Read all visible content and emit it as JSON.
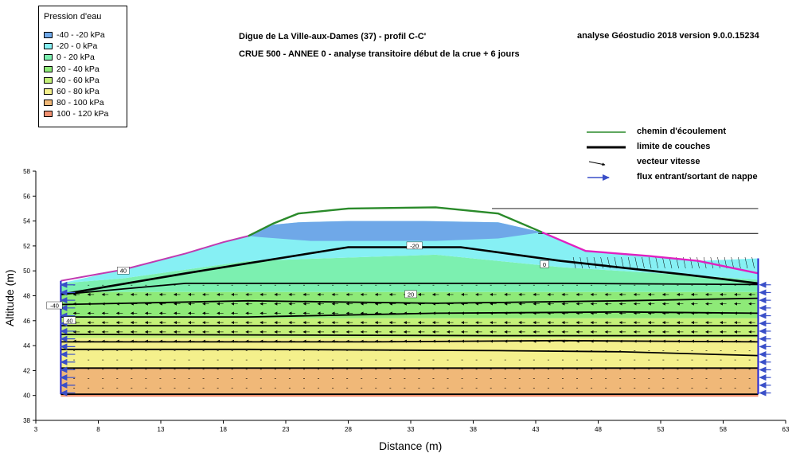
{
  "legend": {
    "title": "Pression d'eau",
    "items": [
      {
        "label": "-40 - -20 kPa",
        "color": "#6fa8e8"
      },
      {
        "label": "-20 - 0 kPa",
        "color": "#86f0f4"
      },
      {
        "label": "0 - 20 kPa",
        "color": "#7cf0b0"
      },
      {
        "label": "20 - 40 kPa",
        "color": "#8eea78"
      },
      {
        "label": "40 - 60 kPa",
        "color": "#c4f078"
      },
      {
        "label": "60 - 80 kPa",
        "color": "#f4f08c"
      },
      {
        "label": "80 - 100 kPa",
        "color": "#f0b878"
      },
      {
        "label": "100 - 120 kPa",
        "color": "#f09070"
      }
    ]
  },
  "header": {
    "title": "Digue de La Ville-aux-Dames (37) - profil C-C'",
    "subtitle": "CRUE 500 - ANNEE 0 -   analyse transitoire début de la crue + 6 jours",
    "software": "analyse Géostudio 2018 version 9.0.0.15234"
  },
  "key": {
    "flow_path": "chemin d'écoulement",
    "layer_limit": "limite de couches",
    "velocity_vector": "vecteur vitesse",
    "water_flux": "flux entrant/sortant de nappe",
    "flow_path_color": "#2a8a2a",
    "flux_color": "#3a4fc8"
  },
  "axes": {
    "xlabel": "Distance (m)",
    "ylabel": "Altitude (m)",
    "xticks": [
      3,
      8,
      13,
      18,
      23,
      28,
      33,
      38,
      43,
      48,
      53,
      58,
      63
    ],
    "yticks": [
      38,
      40,
      42,
      44,
      46,
      48,
      50,
      52,
      54,
      56,
      58
    ],
    "xlim": [
      3,
      63
    ],
    "ylim": [
      38,
      58
    ]
  },
  "contour_labels": [
    "-20",
    "0",
    "-40",
    "20",
    "40",
    "40"
  ],
  "chart_data": {
    "type": "diagram",
    "x_range": [
      3,
      63
    ],
    "y_range": [
      38,
      58
    ],
    "embankment_profile": [
      [
        5,
        49.2
      ],
      [
        10,
        50.1
      ],
      [
        15,
        51.4
      ],
      [
        18,
        52.3
      ],
      [
        20,
        52.8
      ],
      [
        22,
        53.8
      ],
      [
        24,
        54.6
      ],
      [
        28,
        55.0
      ],
      [
        35,
        55.1
      ],
      [
        40,
        54.6
      ],
      [
        43.5,
        53.1
      ],
      [
        47,
        51.6
      ],
      [
        52,
        51.2
      ],
      [
        56,
        50.8
      ],
      [
        60.8,
        49.8
      ]
    ],
    "water_levels": [
      {
        "y": 55.0,
        "x_from": 39.5,
        "x_to": 60.8
      },
      {
        "y": 53.0,
        "x_from": 43.2,
        "x_to": 60.8
      }
    ],
    "layer_boundaries": [
      [
        [
          5,
          48.1
        ],
        [
          15,
          49.8
        ],
        [
          28,
          51.9
        ],
        [
          37,
          51.9
        ],
        [
          45,
          50.8
        ],
        [
          55,
          49.7
        ],
        [
          60.8,
          49.0
        ]
      ],
      [
        [
          5,
          48.1
        ],
        [
          15,
          49.0
        ],
        [
          45,
          49.0
        ],
        [
          60.8,
          48.9
        ]
      ],
      [
        [
          5,
          47.3
        ],
        [
          20,
          47.6
        ],
        [
          35,
          47.4
        ],
        [
          50,
          47.6
        ],
        [
          60.8,
          47.8
        ]
      ],
      [
        [
          5,
          46.3
        ],
        [
          20,
          46.3
        ],
        [
          35,
          46.6
        ],
        [
          50,
          46.7
        ],
        [
          60.8,
          46.6
        ]
      ],
      [
        [
          5,
          45.6
        ],
        [
          60.8,
          45.6
        ]
      ],
      [
        [
          5,
          44.9
        ],
        [
          40,
          44.8
        ],
        [
          60.8,
          44.8
        ]
      ],
      [
        [
          5,
          44.3
        ],
        [
          30,
          44.3
        ],
        [
          45,
          44.4
        ],
        [
          60.8,
          44.3
        ]
      ],
      [
        [
          5,
          43.7
        ],
        [
          20,
          43.7
        ],
        [
          40,
          43.6
        ],
        [
          50,
          43.5
        ],
        [
          60.8,
          43.2
        ]
      ],
      [
        [
          5,
          42.2
        ],
        [
          60.8,
          42.2
        ]
      ],
      [
        [
          5,
          40.1
        ],
        [
          60.8,
          40.1
        ]
      ]
    ],
    "pressure_zones": [
      {
        "range": "100 - 120 kPa",
        "polygon": [
          [
            5,
            40.1
          ],
          [
            60.8,
            40.1
          ],
          [
            60.8,
            39.9
          ],
          [
            5,
            39.9
          ]
        ]
      },
      {
        "range": "80 - 100 kPa",
        "polygon": [
          [
            5,
            40.1
          ],
          [
            60.8,
            40.1
          ],
          [
            60.8,
            42.2
          ],
          [
            5,
            42.2
          ]
        ]
      },
      {
        "range": "60 - 80 kPa",
        "polygon": [
          [
            5,
            42.2
          ],
          [
            60.8,
            42.2
          ],
          [
            60.8,
            44.6
          ],
          [
            5,
            44.6
          ]
        ]
      },
      {
        "range": "40 - 60 kPa",
        "polygon": [
          [
            5,
            44.6
          ],
          [
            60.8,
            44.6
          ],
          [
            60.8,
            46.2
          ],
          [
            5,
            46.2
          ]
        ]
      },
      {
        "range": "20 - 40 kPa",
        "polygon": [
          [
            5,
            46.2
          ],
          [
            60.8,
            46.2
          ],
          [
            60.8,
            48.3
          ],
          [
            5,
            48.3
          ]
        ]
      },
      {
        "range": "0 - 20 kPa",
        "polygon": [
          [
            5,
            48.3
          ],
          [
            60.8,
            48.3
          ],
          [
            60.8,
            49.3
          ],
          [
            45,
            50.3
          ],
          [
            35,
            51.3
          ],
          [
            20,
            50.8
          ],
          [
            10,
            49.4
          ],
          [
            5,
            49.0
          ]
        ]
      },
      {
        "range": "-20 - 0 kPa",
        "polygon": [
          [
            5,
            49.0
          ],
          [
            10,
            49.4
          ],
          [
            20,
            50.8
          ],
          [
            35,
            51.3
          ],
          [
            45,
            50.3
          ],
          [
            60.8,
            49.3
          ],
          [
            60.8,
            51.0
          ],
          [
            56,
            50.8
          ],
          [
            52,
            51.2
          ],
          [
            47,
            51.6
          ],
          [
            43.5,
            53.1
          ],
          [
            40,
            53.9
          ],
          [
            34,
            54.0
          ],
          [
            28,
            54.0
          ],
          [
            24,
            53.9
          ],
          [
            22,
            53.7
          ],
          [
            20,
            52.8
          ],
          [
            18,
            52.3
          ],
          [
            15,
            51.4
          ],
          [
            10,
            50.1
          ]
        ]
      },
      {
        "range": "-40 - -20 kPa",
        "polygon": [
          [
            20,
            52.8
          ],
          [
            22,
            53.7
          ],
          [
            24,
            53.9
          ],
          [
            28,
            54.0
          ],
          [
            34,
            54.0
          ],
          [
            40,
            53.9
          ],
          [
            43.5,
            53.1
          ],
          [
            40,
            52.6
          ],
          [
            35,
            52.4
          ],
          [
            25,
            52.4
          ],
          [
            21,
            52.7
          ]
        ]
      }
    ],
    "contour_label_positions": [
      [
        33.3,
        52.0
      ],
      [
        43.7,
        50.5
      ],
      [
        4.5,
        47.2
      ],
      [
        33.0,
        48.1
      ],
      [
        5.7,
        46.0
      ],
      [
        10.0,
        50.0
      ]
    ]
  }
}
